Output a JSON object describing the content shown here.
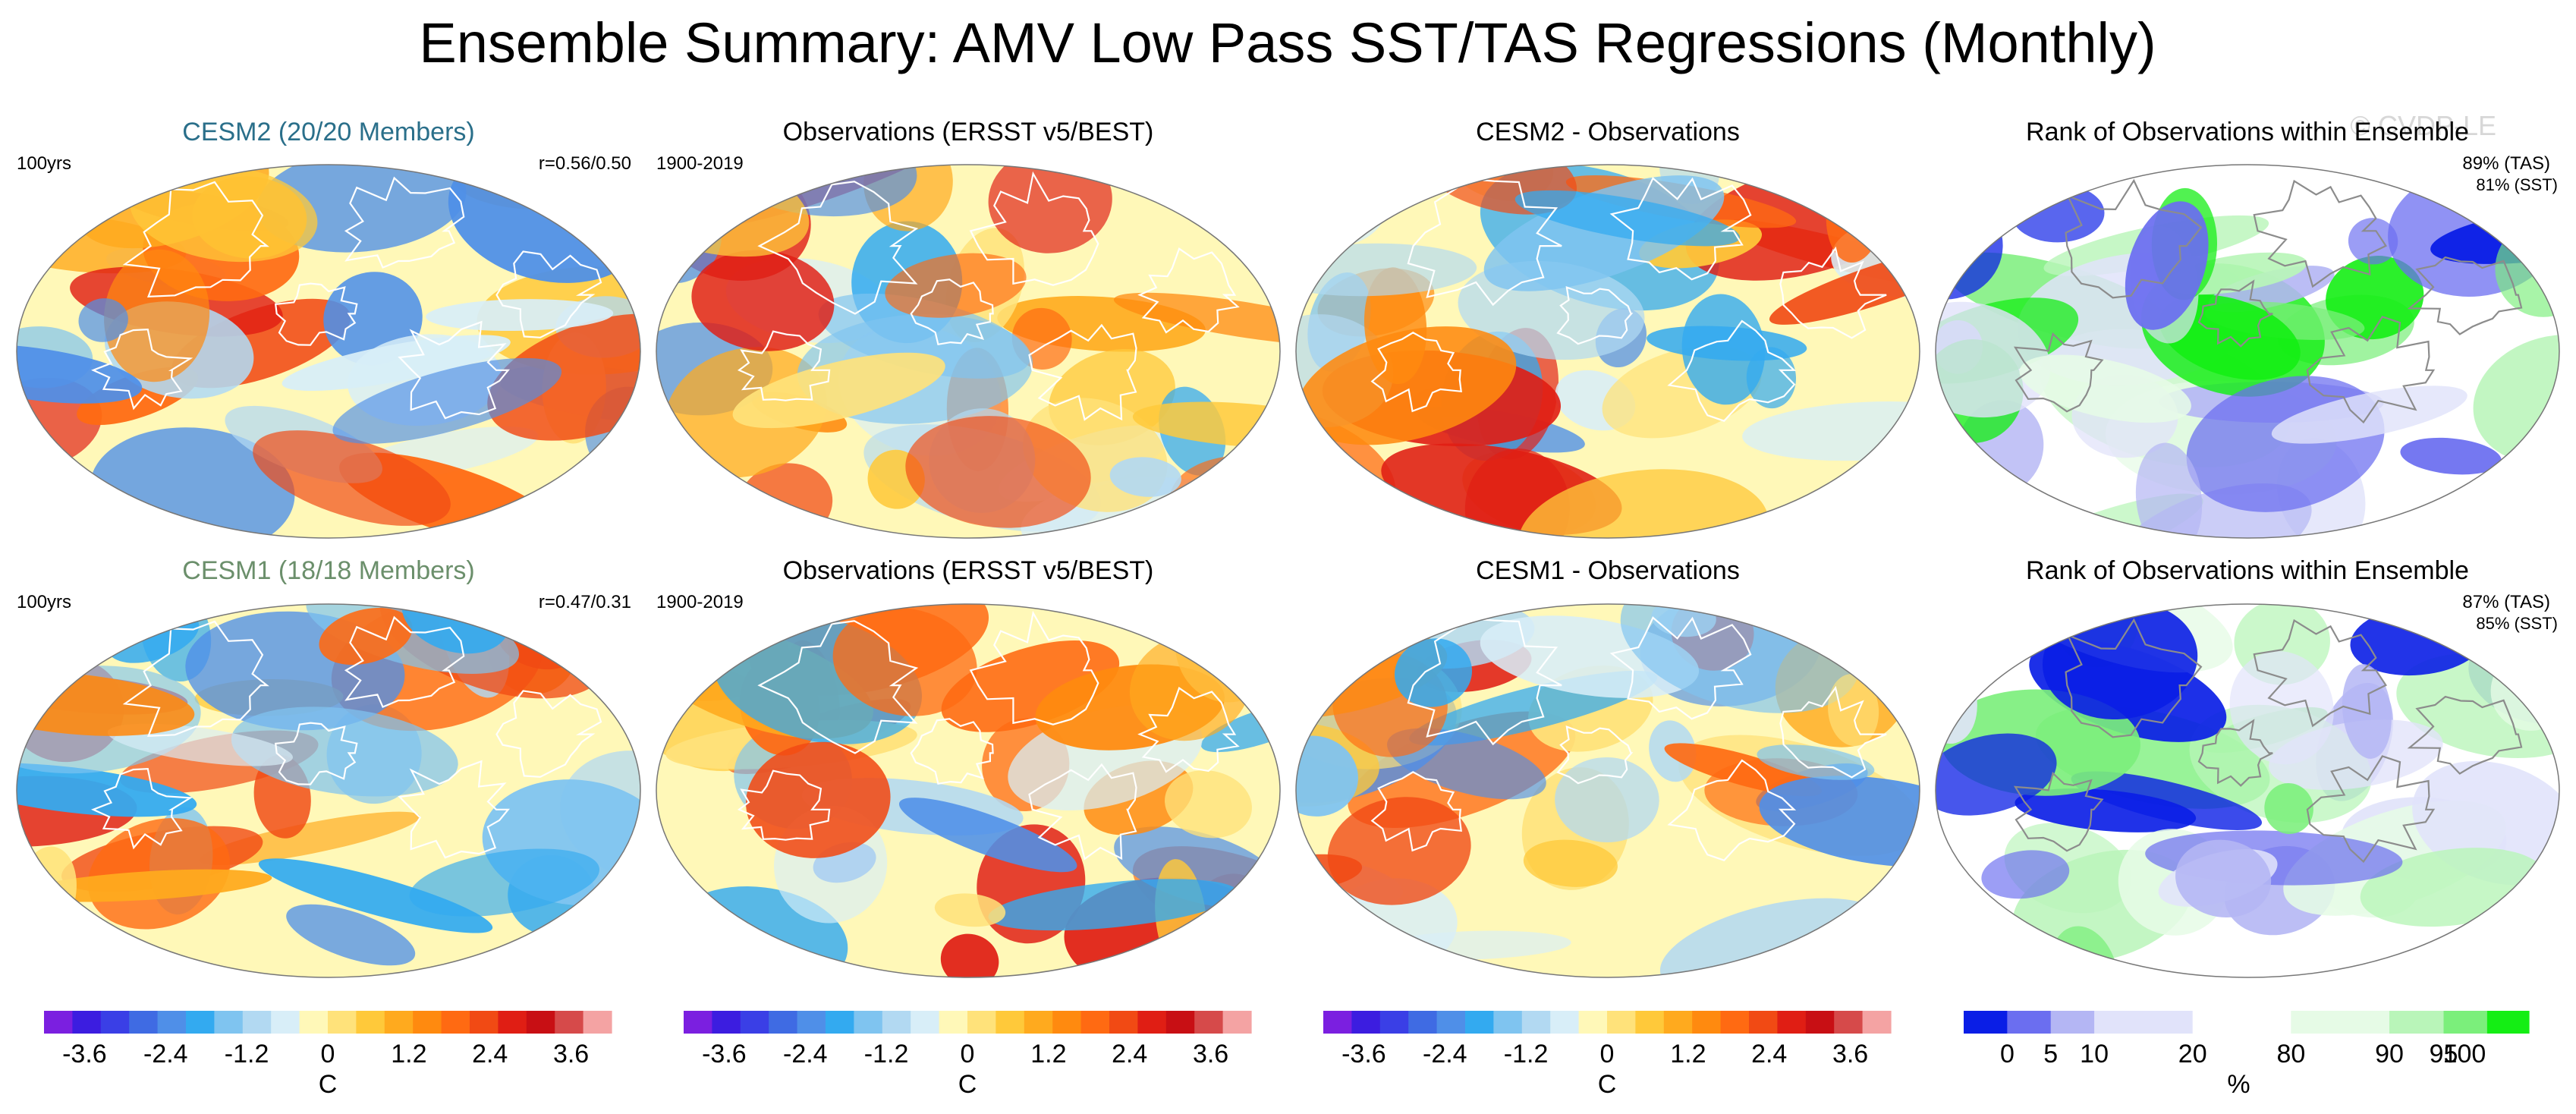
{
  "chart_data": {
    "type": "heatmap",
    "title": "Ensemble Summary: AMV Low Pass SST/TAS Regressions (Monthly)",
    "watermark": "© CVDP-LE",
    "colors": {
      "diverging": [
        "#7b1fe0",
        "#3c1de0",
        "#3a3fe6",
        "#3f6be3",
        "#4f8fe8",
        "#33aaf0",
        "#7fc4f0",
        "#b2d9f2",
        "#d8eef8",
        "#fff8b8",
        "#ffe27a",
        "#ffc93a",
        "#ffaa1e",
        "#ff8a0f",
        "#ff6a12",
        "#f14a14",
        "#e01e14",
        "#c80f14",
        "#d64a4a",
        "#f4a3a3"
      ],
      "rank": [
        "#0a1ee6",
        "#6b6ef0",
        "#b4b6f4",
        "#e1e3fa",
        "#ffffff",
        "#e6fbe6",
        "#b9f5b9",
        "#7bef7b",
        "#14ee14"
      ]
    },
    "panels": [
      {
        "title": "CESM2 (20/20 Members)",
        "title_color": "#2a6f8a",
        "left_label": "100yrs",
        "right_label": "r=0.56/0.50",
        "kind": "diverging",
        "seed": 11
      },
      {
        "title": "Observations (ERSST v5/BEST)",
        "title_color": "#000000",
        "left_label": "1900-2019",
        "right_label": "",
        "kind": "diverging",
        "seed": 23
      },
      {
        "title": "CESM2 - Observations",
        "title_color": "#000000",
        "left_label": "",
        "right_label": "",
        "kind": "diverging",
        "seed": 37
      },
      {
        "title": "Rank of Observations within Ensemble",
        "title_color": "#000000",
        "left_label": "",
        "right_label": "89% (TAS)",
        "right_label2": "81% (SST)",
        "kind": "rank",
        "seed": 41
      },
      {
        "title": "CESM1 (18/18 Members)",
        "title_color": "#6b8f6b",
        "left_label": "100yrs",
        "right_label": "r=0.47/0.31",
        "kind": "diverging",
        "seed": 53
      },
      {
        "title": "Observations (ERSST v5/BEST)",
        "title_color": "#000000",
        "left_label": "1900-2019",
        "right_label": "",
        "kind": "diverging",
        "seed": 67
      },
      {
        "title": "CESM1 - Observations",
        "title_color": "#000000",
        "left_label": "",
        "right_label": "",
        "kind": "diverging",
        "seed": 79
      },
      {
        "title": "Rank of Observations within Ensemble",
        "title_color": "#000000",
        "left_label": "",
        "right_label": "87% (TAS)",
        "right_label2": "85% (SST)",
        "kind": "rank",
        "seed": 83
      }
    ],
    "colorbars": [
      {
        "kind": "diverging",
        "ticks": [
          "-3.6",
          "-2.4",
          "-1.2",
          "0",
          "1.2",
          "2.4",
          "3.6"
        ],
        "tick_values": [
          -3.6,
          -2.4,
          -1.2,
          0,
          1.2,
          2.4,
          3.6
        ],
        "range": [
          -4.2,
          4.2
        ],
        "unit": "C"
      },
      {
        "kind": "diverging",
        "ticks": [
          "-3.6",
          "-2.4",
          "-1.2",
          "0",
          "1.2",
          "2.4",
          "3.6"
        ],
        "tick_values": [
          -3.6,
          -2.4,
          -1.2,
          0,
          1.2,
          2.4,
          3.6
        ],
        "range": [
          -4.2,
          4.2
        ],
        "unit": "C"
      },
      {
        "kind": "diverging",
        "ticks": [
          "-3.6",
          "-2.4",
          "-1.2",
          "0",
          "1.2",
          "2.4",
          "3.6"
        ],
        "tick_values": [
          -3.6,
          -2.4,
          -1.2,
          0,
          1.2,
          2.4,
          3.6
        ],
        "range": [
          -4.2,
          4.2
        ],
        "unit": "C"
      },
      {
        "kind": "rank",
        "ticks": [
          "0",
          "5",
          "10",
          "20",
          "80",
          "90",
          "95",
          "100"
        ],
        "boundaries": [
          0,
          5,
          10,
          20,
          80,
          90,
          95,
          100
        ],
        "unit": "%"
      }
    ]
  }
}
